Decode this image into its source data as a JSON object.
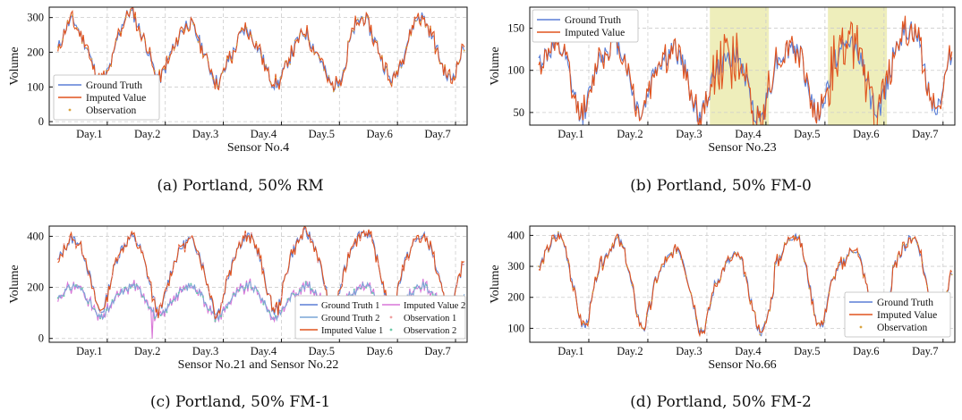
{
  "colors": {
    "ground_truth": "#5b7fd6",
    "imputed": "#e0531e",
    "observation": "#d9a441",
    "ground_truth_2": "#7aa6d6",
    "imputed_2": "#d977d8",
    "observation_1": "#f0a0a0",
    "observation_2": "#6cc9a8",
    "shade": "#eeeebb",
    "grid": "#cccccc"
  },
  "chart_data": [
    {
      "id": "a",
      "type": "line",
      "caption": "(a)  Portland, 50% RM",
      "xlabel": "Sensor No.4",
      "ylabel": "Volume",
      "ylim": [
        -10,
        330
      ],
      "yticks": [
        0,
        100,
        200,
        300
      ],
      "xticks": [
        "Day.1",
        "Day.2",
        "Day.3",
        "Day.4",
        "Day.5",
        "Day.6",
        "Day.7"
      ],
      "legend_position": "bottom-left",
      "series": [
        {
          "name": "Ground Truth",
          "role": "gt"
        },
        {
          "name": "Imputed Value",
          "role": "imp"
        },
        {
          "name": "Observation",
          "role": "obs"
        }
      ],
      "day_profile": [
        [
          0,
          205
        ],
        [
          0.12,
          260
        ],
        [
          0.22,
          285
        ],
        [
          0.3,
          280
        ],
        [
          0.38,
          250
        ],
        [
          0.5,
          210
        ],
        [
          0.6,
          160
        ],
        [
          0.7,
          120
        ],
        [
          0.78,
          115
        ],
        [
          0.88,
          150
        ],
        [
          1,
          205
        ]
      ],
      "day_peaks": [
        290,
        315,
        285,
        265,
        255,
        300,
        305
      ]
    },
    {
      "id": "b",
      "type": "line",
      "caption": "(b)  Portland, 50% FM-0",
      "xlabel": "Sensor No.23",
      "ylabel": "Volume",
      "ylim": [
        35,
        175
      ],
      "yticks": [
        50,
        100,
        150
      ],
      "xticks": [
        "Day.1",
        "Day.2",
        "Day.3",
        "Day.4",
        "Day.5",
        "Day.6",
        "Day.7"
      ],
      "legend_position": "top-left",
      "shaded_days": [
        [
          3.05,
          4.05
        ],
        [
          5.05,
          6.05
        ]
      ],
      "series": [
        {
          "name": "Ground Truth",
          "role": "gt"
        },
        {
          "name": "Imputed Value",
          "role": "imp"
        }
      ],
      "day_profile": [
        [
          0,
          105
        ],
        [
          0.15,
          115
        ],
        [
          0.3,
          125
        ],
        [
          0.45,
          110
        ],
        [
          0.55,
          80
        ],
        [
          0.65,
          55
        ],
        [
          0.75,
          45
        ],
        [
          0.85,
          65
        ],
        [
          1,
          105
        ]
      ],
      "day_peaks": [
        130,
        135,
        125,
        120,
        130,
        135,
        150
      ]
    },
    {
      "id": "c",
      "type": "line",
      "caption": "(c)  Portland, 50% FM-1",
      "xlabel": "Sensor No.21 and Sensor No.22",
      "ylabel": "Volume",
      "ylim": [
        -15,
        440
      ],
      "yticks": [
        0,
        200,
        400
      ],
      "xticks": [
        "Day.1",
        "Day.2",
        "Day.3",
        "Day.4",
        "Day.5",
        "Day.6",
        "Day.7"
      ],
      "legend_position": "bottom-right",
      "series": [
        {
          "name": "Ground Truth 1",
          "role": "gt"
        },
        {
          "name": "Ground Truth 2",
          "role": "gt2"
        },
        {
          "name": "Imputed Value 1",
          "role": "imp"
        },
        {
          "name": "Imputed Value 2",
          "role": "imp2"
        },
        {
          "name": "Observation 1",
          "role": "obs1"
        },
        {
          "name": "Observation 2",
          "role": "obs2"
        }
      ],
      "day_profile": [
        [
          0,
          300
        ],
        [
          0.12,
          360
        ],
        [
          0.25,
          390
        ],
        [
          0.35,
          380
        ],
        [
          0.45,
          330
        ],
        [
          0.55,
          240
        ],
        [
          0.65,
          150
        ],
        [
          0.72,
          100
        ],
        [
          0.8,
          120
        ],
        [
          0.9,
          220
        ],
        [
          1,
          300
        ]
      ],
      "day_profile_2": [
        [
          0,
          160
        ],
        [
          0.15,
          190
        ],
        [
          0.3,
          210
        ],
        [
          0.45,
          180
        ],
        [
          0.6,
          120
        ],
        [
          0.7,
          80
        ],
        [
          0.8,
          90
        ],
        [
          1,
          160
        ]
      ],
      "day_peaks": [
        390,
        395,
        385,
        400,
        410,
        420,
        400
      ]
    },
    {
      "id": "d",
      "type": "line",
      "caption": "(d)  Portland, 50% FM-2",
      "xlabel": "Sensor No.66",
      "ylabel": "Volume",
      "ylim": [
        55,
        430
      ],
      "yticks": [
        100,
        200,
        300,
        400
      ],
      "xticks": [
        "Day.1",
        "Day.2",
        "Day.3",
        "Day.4",
        "Day.5",
        "Day.6",
        "Day.7"
      ],
      "legend_position": "bottom-right",
      "series": [
        {
          "name": "Ground Truth",
          "role": "gt"
        },
        {
          "name": "Imputed Value",
          "role": "imp"
        },
        {
          "name": "Observation",
          "role": "obs"
        }
      ],
      "day_profile": [
        [
          0,
          280
        ],
        [
          0.12,
          330
        ],
        [
          0.25,
          370
        ],
        [
          0.35,
          390
        ],
        [
          0.45,
          350
        ],
        [
          0.55,
          260
        ],
        [
          0.65,
          170
        ],
        [
          0.72,
          110
        ],
        [
          0.8,
          100
        ],
        [
          0.9,
          180
        ],
        [
          1,
          280
        ]
      ],
      "day_peaks": [
        405,
        390,
        360,
        340,
        410,
        360,
        400
      ]
    }
  ]
}
